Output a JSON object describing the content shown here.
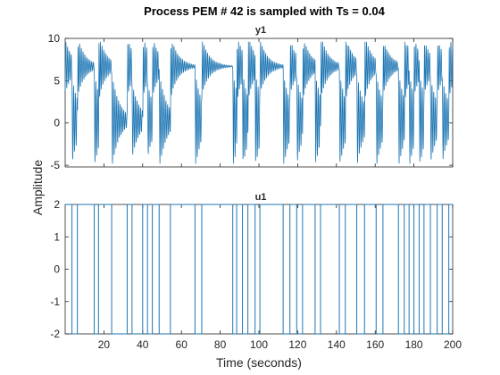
{
  "figure_title": "Process PEM # 42 is sampled with Ts = 0.04",
  "xlabel": "Time (seconds)",
  "ylabel": "Amplitude",
  "colors": {
    "line": "#1f77b4",
    "axes": "#262626",
    "background": "#ffffff"
  },
  "chart_data": [
    {
      "type": "line",
      "title": "y1",
      "xlim": [
        0,
        200
      ],
      "ylim": [
        -5.2,
        10
      ],
      "yticks": [
        -5,
        0,
        5,
        10
      ],
      "xticks_labeled": false,
      "grid": false,
      "regime": {
        "baseline": 3.5,
        "spike_high": 9.6,
        "spike_low": -4.8,
        "settled_segments_x": [
          [
            60,
            85
          ],
          [
            113,
            120
          ],
          [
            153,
            160
          ]
        ]
      }
    },
    {
      "type": "line",
      "title": "u1",
      "xlim": [
        0,
        200
      ],
      "ylim": [
        -2,
        2
      ],
      "yticks": [
        -2,
        -1,
        0,
        1,
        2
      ],
      "xticks": [
        20,
        40,
        60,
        80,
        100,
        120,
        140,
        160,
        180,
        200
      ],
      "grid": false,
      "levels": [
        -2,
        2
      ],
      "switch_times": [
        3.5,
        6.3,
        15,
        17.2,
        24,
        32,
        34.5,
        40,
        42.5,
        45,
        48.5,
        54.3,
        67,
        70.5,
        86.5,
        88.5,
        91.5,
        94.3,
        98,
        100.5,
        112.5,
        116,
        119.5,
        122.5,
        129,
        131.8,
        141.5,
        144.6,
        150.5,
        154.5,
        160.5,
        164,
        172,
        175,
        177.5,
        180,
        182.7,
        185.2,
        188.5,
        192,
        194.6,
        198
      ]
    }
  ]
}
